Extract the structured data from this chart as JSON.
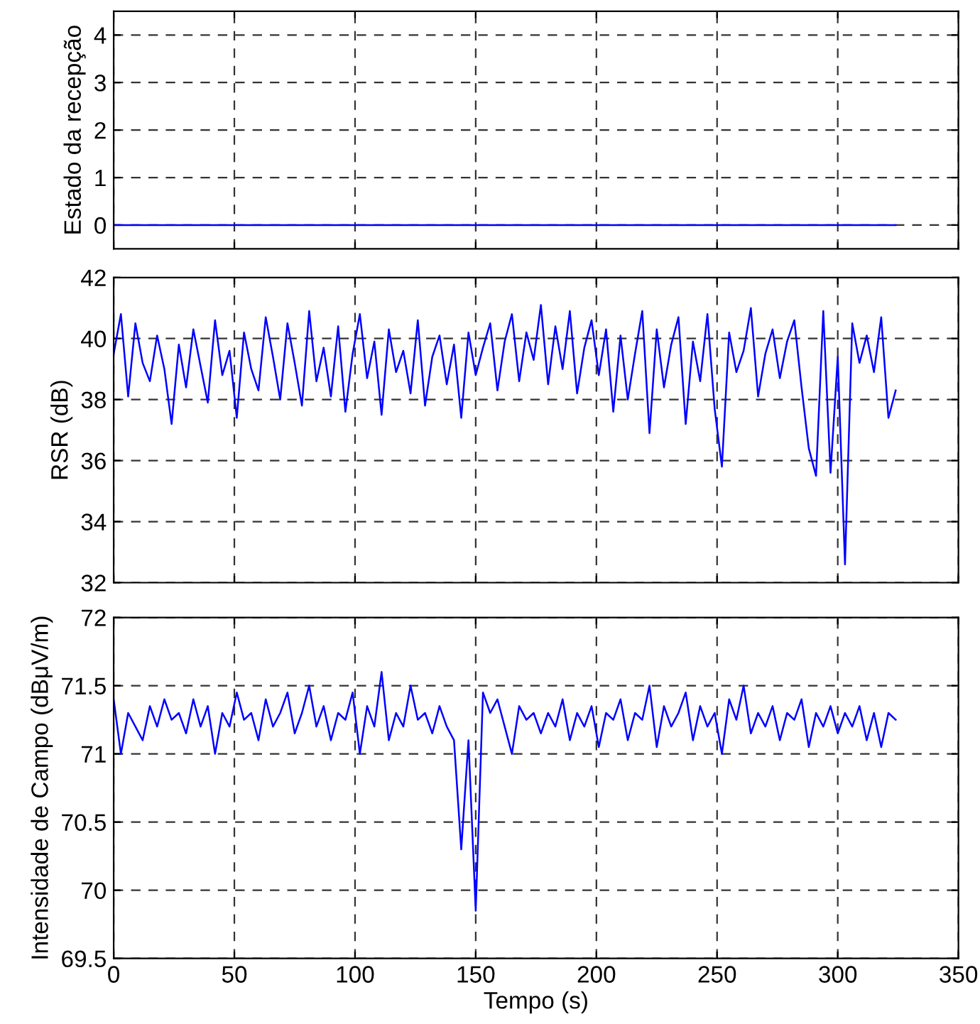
{
  "chart_data": [
    {
      "type": "line",
      "ylabel": "Estado da recepção",
      "x": [
        0,
        324
      ],
      "series": [
        {
          "color": "#0000ff",
          "values": [
            0,
            0
          ]
        }
      ],
      "xlim": [
        0,
        350
      ],
      "xticks": [
        0,
        50,
        100,
        150,
        200,
        250,
        300,
        350
      ],
      "ylim": [
        -0.5,
        4.5
      ],
      "yticks": [
        0,
        1,
        2,
        3,
        4
      ],
      "grid": true,
      "tick_labels": "y",
      "marker": "none",
      "line_style": "solid"
    },
    {
      "type": "line",
      "ylabel": "RSR (dB)",
      "x": [
        0,
        3,
        6,
        9,
        12,
        15,
        18,
        21,
        24,
        27,
        30,
        33,
        36,
        39,
        42,
        45,
        48,
        51,
        54,
        57,
        60,
        63,
        66,
        69,
        72,
        75,
        78,
        81,
        84,
        87,
        90,
        93,
        96,
        99,
        102,
        105,
        108,
        111,
        114,
        117,
        120,
        123,
        126,
        129,
        132,
        135,
        138,
        141,
        144,
        147,
        150,
        153,
        156,
        159,
        162,
        165,
        168,
        171,
        174,
        177,
        180,
        183,
        186,
        189,
        192,
        195,
        198,
        201,
        204,
        207,
        210,
        213,
        216,
        219,
        222,
        225,
        228,
        231,
        234,
        237,
        240,
        243,
        246,
        249,
        252,
        255,
        258,
        261,
        264,
        267,
        270,
        273,
        276,
        279,
        282,
        285,
        288,
        291,
        294,
        297,
        300,
        303,
        306,
        309,
        312,
        315,
        318,
        321,
        324
      ],
      "series": [
        {
          "color": "#0000ff",
          "values": [
            39.5,
            40.8,
            38.1,
            40.5,
            39.2,
            38.6,
            40.1,
            39.0,
            37.2,
            39.8,
            38.4,
            40.3,
            39.1,
            37.9,
            40.6,
            38.8,
            39.6,
            37.4,
            40.2,
            39.0,
            38.3,
            40.7,
            39.4,
            38.0,
            40.5,
            39.2,
            37.8,
            40.9,
            38.6,
            39.7,
            38.1,
            40.4,
            37.6,
            39.5,
            40.8,
            38.7,
            39.9,
            37.5,
            40.3,
            38.9,
            39.6,
            38.2,
            40.6,
            37.8,
            39.4,
            40.1,
            38.5,
            39.8,
            37.4,
            40.2,
            38.8,
            39.7,
            40.5,
            38.3,
            39.9,
            40.8,
            38.6,
            40.2,
            39.3,
            41.1,
            38.5,
            40.4,
            39.0,
            40.9,
            38.2,
            39.7,
            40.6,
            38.8,
            40.3,
            37.6,
            40.1,
            38.0,
            39.5,
            40.9,
            36.9,
            40.3,
            38.4,
            39.8,
            40.7,
            37.2,
            39.9,
            38.6,
            40.8,
            37.7,
            35.8,
            40.2,
            38.9,
            39.6,
            41.0,
            38.1,
            39.5,
            40.3,
            38.7,
            39.9,
            40.6,
            38.4,
            36.4,
            35.5,
            40.9,
            35.6,
            39.4,
            32.6,
            40.5,
            39.2,
            40.1,
            38.9,
            40.7,
            37.4,
            38.3
          ]
        }
      ],
      "xlim": [
        0,
        350
      ],
      "xticks": [
        0,
        50,
        100,
        150,
        200,
        250,
        300,
        350
      ],
      "ylim": [
        32,
        42
      ],
      "yticks": [
        32,
        34,
        36,
        38,
        40,
        42
      ],
      "grid": true,
      "tick_labels": "y",
      "marker": "none",
      "line_style": "solid"
    },
    {
      "type": "line",
      "ylabel": "Intensidade de Campo (dBμV/m)",
      "xlabel": "Tempo (s)",
      "x": [
        0,
        3,
        6,
        9,
        12,
        15,
        18,
        21,
        24,
        27,
        30,
        33,
        36,
        39,
        42,
        45,
        48,
        51,
        54,
        57,
        60,
        63,
        66,
        69,
        72,
        75,
        78,
        81,
        84,
        87,
        90,
        93,
        96,
        99,
        102,
        105,
        108,
        111,
        114,
        117,
        120,
        123,
        126,
        129,
        132,
        135,
        138,
        141,
        144,
        147,
        150,
        153,
        156,
        159,
        162,
        165,
        168,
        171,
        174,
        177,
        180,
        183,
        186,
        189,
        192,
        195,
        198,
        201,
        204,
        207,
        210,
        213,
        216,
        219,
        222,
        225,
        228,
        231,
        234,
        237,
        240,
        243,
        246,
        249,
        252,
        255,
        258,
        261,
        264,
        267,
        270,
        273,
        276,
        279,
        282,
        285,
        288,
        291,
        294,
        297,
        300,
        303,
        306,
        309,
        312,
        315,
        318,
        321,
        324
      ],
      "series": [
        {
          "color": "#0000ff",
          "values": [
            71.4,
            71.0,
            71.3,
            71.2,
            71.1,
            71.35,
            71.2,
            71.4,
            71.25,
            71.3,
            71.15,
            71.4,
            71.2,
            71.35,
            71.0,
            71.3,
            71.2,
            71.45,
            71.25,
            71.3,
            71.1,
            71.4,
            71.2,
            71.3,
            71.45,
            71.15,
            71.3,
            71.5,
            71.2,
            71.35,
            71.1,
            71.3,
            71.25,
            71.45,
            71.0,
            71.35,
            71.2,
            71.6,
            71.1,
            71.3,
            71.2,
            71.5,
            71.25,
            71.3,
            71.15,
            71.35,
            71.2,
            71.1,
            70.3,
            71.1,
            69.85,
            71.45,
            71.3,
            71.4,
            71.2,
            71.0,
            71.35,
            71.25,
            71.3,
            71.15,
            71.3,
            71.2,
            71.4,
            71.1,
            71.3,
            71.2,
            71.35,
            71.05,
            71.3,
            71.25,
            71.4,
            71.1,
            71.3,
            71.25,
            71.5,
            71.05,
            71.35,
            71.2,
            71.3,
            71.45,
            71.1,
            71.35,
            71.2,
            71.3,
            71.0,
            71.4,
            71.25,
            71.5,
            71.15,
            71.3,
            71.2,
            71.35,
            71.1,
            71.3,
            71.25,
            71.4,
            71.05,
            71.3,
            71.2,
            71.35,
            71.15,
            71.3,
            71.2,
            71.35,
            71.1,
            71.3,
            71.05,
            71.3,
            71.25
          ]
        }
      ],
      "xlim": [
        0,
        350
      ],
      "xticks": [
        0,
        50,
        100,
        150,
        200,
        250,
        300,
        350
      ],
      "ylim": [
        69.5,
        72
      ],
      "yticks": [
        69.5,
        70,
        70.5,
        71,
        71.5,
        72
      ],
      "grid": true,
      "marker": "none",
      "line_style": "solid"
    }
  ]
}
